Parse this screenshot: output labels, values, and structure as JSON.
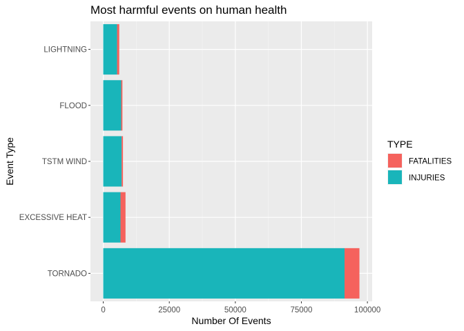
{
  "chart_data": {
    "type": "bar",
    "orientation": "horizontal",
    "stacked": true,
    "title": "Most harmful events on human health",
    "xlabel": "Number Of Events",
    "ylabel": "Event Type",
    "categories": [
      "TORNADO",
      "EXCESSIVE HEAT",
      "TSTM WIND",
      "FLOOD",
      "LIGHTNING"
    ],
    "series": [
      {
        "name": "INJURIES",
        "color": "#19B5BA",
        "values": [
          91346,
          6525,
          6957,
          6789,
          5230
        ]
      },
      {
        "name": "FATALITIES",
        "color": "#F5625D",
        "values": [
          5633,
          1903,
          504,
          470,
          816
        ]
      }
    ],
    "xlim": [
      -4848,
      101800
    ],
    "xticks": [
      0,
      25000,
      50000,
      75000,
      100000
    ],
    "grid": true,
    "legend": {
      "title": "TYPE",
      "position": "right",
      "entries": [
        "FATALITIES",
        "INJURIES"
      ]
    }
  }
}
